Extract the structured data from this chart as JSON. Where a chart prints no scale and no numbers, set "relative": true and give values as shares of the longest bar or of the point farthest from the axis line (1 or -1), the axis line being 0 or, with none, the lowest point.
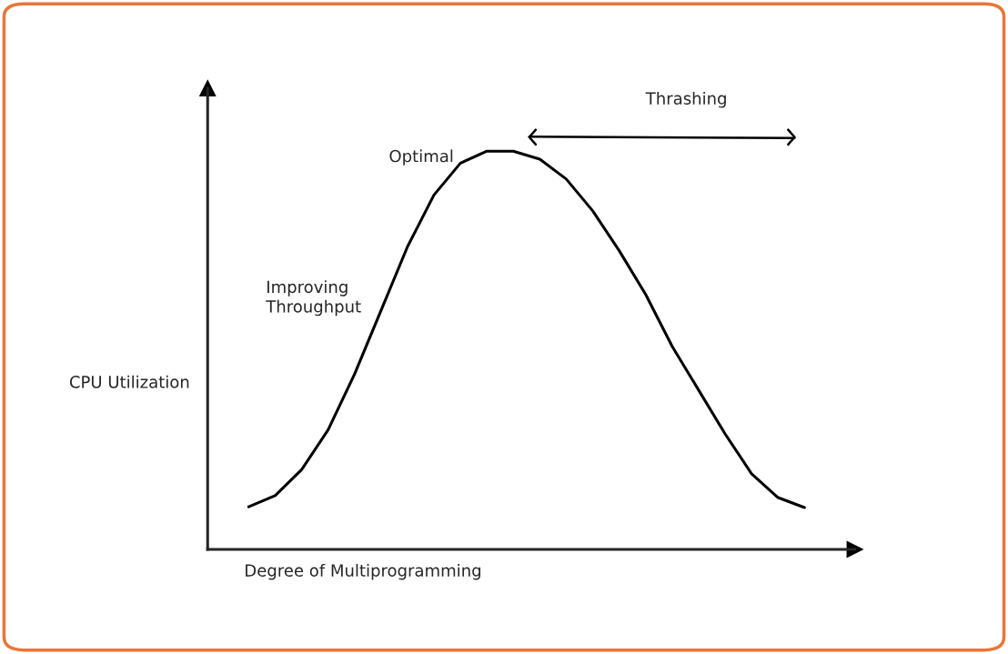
{
  "chart_data": {
    "type": "line",
    "relative": true,
    "xlabel": "Degree of Multiprogramming",
    "ylabel": "CPU Utilization",
    "categories": [
      null,
      null,
      null,
      null,
      null,
      null,
      null,
      null,
      null,
      null,
      null,
      null,
      null,
      null,
      null,
      null,
      null,
      null,
      null,
      null,
      null,
      null
    ],
    "series": [
      {
        "color": "#000000",
        "values": [
          0.107,
          0.135,
          0.2,
          0.3,
          0.44,
          0.6,
          0.76,
          0.89,
          0.97,
          1.0,
          1.0,
          0.98,
          0.93,
          0.85,
          0.75,
          0.64,
          0.51,
          0.4,
          0.29,
          0.19,
          0.13,
          0.105
        ]
      }
    ],
    "annotations": [
      "Optimal",
      "Improving\nThroughput",
      "Thrashing"
    ],
    "marker": "none",
    "line_style": "solid",
    "grid": false,
    "legend": false
  }
}
